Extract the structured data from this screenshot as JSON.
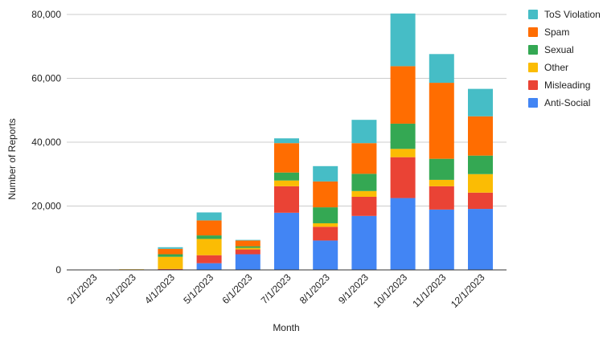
{
  "chart_data": {
    "type": "bar",
    "stacked": true,
    "title": "",
    "xlabel": "Month",
    "ylabel": "Number of Reports",
    "ylim": [
      0,
      80000
    ],
    "yticks": [
      "0",
      "20,000",
      "40,000",
      "60,000",
      "80,000"
    ],
    "grid": true,
    "legend_position": "right",
    "categories": [
      "2/1/2023",
      "3/1/2023",
      "4/1/2023",
      "5/1/2023",
      "6/1/2023",
      "7/1/2023",
      "8/1/2023",
      "9/1/2023",
      "10/1/2023",
      "11/1/2023",
      "12/1/2023"
    ],
    "series": [
      {
        "name": "Anti-Social",
        "color": "#4285f4",
        "values": [
          0,
          0,
          0,
          2100,
          4900,
          17900,
          9200,
          16900,
          22500,
          18900,
          19100
        ]
      },
      {
        "name": "Misleading",
        "color": "#ea4335",
        "values": [
          0,
          0,
          300,
          2500,
          1500,
          8300,
          4300,
          6000,
          12800,
          7300,
          5100
        ]
      },
      {
        "name": "Other",
        "color": "#fbbc04",
        "values": [
          0,
          200,
          3800,
          5100,
          500,
          1800,
          1100,
          1800,
          2600,
          2000,
          5800
        ]
      },
      {
        "name": "Sexual",
        "color": "#34a853",
        "values": [
          0,
          0,
          800,
          1100,
          500,
          2500,
          5000,
          5400,
          7900,
          6600,
          5800
        ]
      },
      {
        "name": "Spam",
        "color": "#ff6d01",
        "values": [
          0,
          0,
          1700,
          4700,
          1800,
          9200,
          8100,
          9600,
          18000,
          23800,
          12300
        ]
      },
      {
        "name": "ToS Violation",
        "color": "#46bdc6",
        "values": [
          0,
          0,
          500,
          2500,
          200,
          1500,
          4800,
          7300,
          16500,
          9000,
          8600
        ]
      }
    ],
    "legend_order": [
      "ToS Violation",
      "Spam",
      "Sexual",
      "Other",
      "Misleading",
      "Anti-Social"
    ]
  }
}
